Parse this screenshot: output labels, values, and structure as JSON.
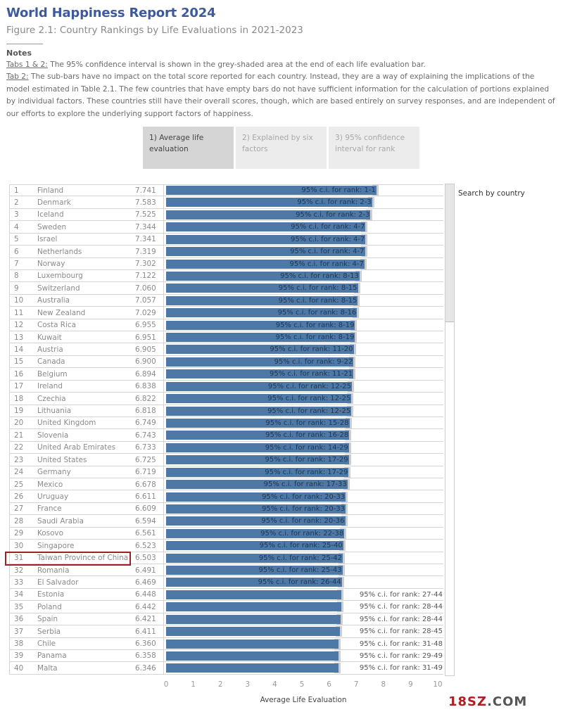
{
  "header": {
    "title": "World Happiness Report 2024",
    "subtitle": "Figure 2.1: Country Rankings by Life Evaluations in 2021-2023"
  },
  "notes": {
    "heading": "Notes",
    "line1_label": "Tabs 1 & 2:",
    "line1_text": " The 95% confidence interval is shown in the grey-shaded area at the end of each life evaluation bar.",
    "line2_label": "Tab 2:",
    "line2_text": " The sub-bars have no impact on the total score reported for each country. Instead, they are a way of explaining the implications of the model estimated in Table 2.1. The few countries that have empty bars do not have sufficient information for the calculation of portions explained by individual factors. These countries still have their overall scores, though, which are based entirely on survey responses, and are independent of our efforts to explore the underlying support factors of happiness."
  },
  "tabs": [
    {
      "label": "1) Average life evaluation",
      "active": true
    },
    {
      "label": "2) Explained by six factors",
      "active": false
    },
    {
      "label": "3) 95% confidence interval for rank",
      "active": false
    }
  ],
  "search": {
    "label": "Search by country"
  },
  "colors": {
    "bar": "#4e79a7",
    "ci": "#c9c9c9",
    "highlight": "#9b2226",
    "title": "#3e5a9e"
  },
  "highlighted_rank": 31,
  "chart_data": {
    "type": "bar",
    "orientation": "horizontal",
    "xlabel": "Average Life Evaluation",
    "xlim": [
      0,
      10
    ],
    "xticks": [
      "0",
      "1",
      "2",
      "3",
      "4",
      "5",
      "6",
      "7",
      "8",
      "9",
      "10"
    ],
    "rows": [
      {
        "rank": "1",
        "country": "Finland",
        "score": "7.741",
        "value": 7.741,
        "ci": "95% c.i. for rank: 1-1"
      },
      {
        "rank": "2",
        "country": "Denmark",
        "score": "7.583",
        "value": 7.583,
        "ci": "95% c.i. for rank: 2-3"
      },
      {
        "rank": "3",
        "country": "Iceland",
        "score": "7.525",
        "value": 7.525,
        "ci": "95% c.i. for rank: 2-3"
      },
      {
        "rank": "4",
        "country": "Sweden",
        "score": "7.344",
        "value": 7.344,
        "ci": "95% c.i. for rank: 4-7"
      },
      {
        "rank": "5",
        "country": "Israel",
        "score": "7.341",
        "value": 7.341,
        "ci": "95% c.i. for rank: 4-7"
      },
      {
        "rank": "6",
        "country": "Netherlands",
        "score": "7.319",
        "value": 7.319,
        "ci": "95% c.i. for rank: 4-7"
      },
      {
        "rank": "7",
        "country": "Norway",
        "score": "7.302",
        "value": 7.302,
        "ci": "95% c.i. for rank: 4-7"
      },
      {
        "rank": "8",
        "country": "Luxembourg",
        "score": "7.122",
        "value": 7.122,
        "ci": "95% c.i. for rank: 8-13"
      },
      {
        "rank": "9",
        "country": "Switzerland",
        "score": "7.060",
        "value": 7.06,
        "ci": "95% c.i. for rank: 8-15"
      },
      {
        "rank": "10",
        "country": "Australia",
        "score": "7.057",
        "value": 7.057,
        "ci": "95% c.i. for rank: 8-15"
      },
      {
        "rank": "11",
        "country": "New Zealand",
        "score": "7.029",
        "value": 7.029,
        "ci": "95% c.i. for rank: 8-16"
      },
      {
        "rank": "12",
        "country": "Costa Rica",
        "score": "6.955",
        "value": 6.955,
        "ci": "95% c.i. for rank: 8-19"
      },
      {
        "rank": "13",
        "country": "Kuwait",
        "score": "6.951",
        "value": 6.951,
        "ci": "95% c.i. for rank: 8-19"
      },
      {
        "rank": "14",
        "country": "Austria",
        "score": "6.905",
        "value": 6.905,
        "ci": "95% c.i. for rank: 11-20"
      },
      {
        "rank": "15",
        "country": "Canada",
        "score": "6.900",
        "value": 6.9,
        "ci": "95% c.i. for rank: 9-22"
      },
      {
        "rank": "16",
        "country": "Belgium",
        "score": "6.894",
        "value": 6.894,
        "ci": "95% c.i. for rank: 11-21"
      },
      {
        "rank": "17",
        "country": "Ireland",
        "score": "6.838",
        "value": 6.838,
        "ci": "95% c.i. for rank: 12-25"
      },
      {
        "rank": "18",
        "country": "Czechia",
        "score": "6.822",
        "value": 6.822,
        "ci": "95% c.i. for rank: 12-25"
      },
      {
        "rank": "19",
        "country": "Lithuania",
        "score": "6.818",
        "value": 6.818,
        "ci": "95% c.i. for rank: 12-25"
      },
      {
        "rank": "20",
        "country": "United Kingdom",
        "score": "6.749",
        "value": 6.749,
        "ci": "95% c.i. for rank: 15-28"
      },
      {
        "rank": "21",
        "country": "Slovenia",
        "score": "6.743",
        "value": 6.743,
        "ci": "95% c.i. for rank: 16-28"
      },
      {
        "rank": "22",
        "country": "United Arab Emirates",
        "score": "6.733",
        "value": 6.733,
        "ci": "95% c.i. for rank: 14-29"
      },
      {
        "rank": "23",
        "country": "United States",
        "score": "6.725",
        "value": 6.725,
        "ci": "95% c.i. for rank: 17-29"
      },
      {
        "rank": "24",
        "country": "Germany",
        "score": "6.719",
        "value": 6.719,
        "ci": "95% c.i. for rank: 17-29"
      },
      {
        "rank": "25",
        "country": "Mexico",
        "score": "6.678",
        "value": 6.678,
        "ci": "95% c.i. for rank: 17-33"
      },
      {
        "rank": "26",
        "country": "Uruguay",
        "score": "6.611",
        "value": 6.611,
        "ci": "95% c.i. for rank: 20-33"
      },
      {
        "rank": "27",
        "country": "France",
        "score": "6.609",
        "value": 6.609,
        "ci": "95% c.i. for rank: 20-33"
      },
      {
        "rank": "28",
        "country": "Saudi Arabia",
        "score": "6.594",
        "value": 6.594,
        "ci": "95% c.i. for rank: 20-36"
      },
      {
        "rank": "29",
        "country": "Kosovo",
        "score": "6.561",
        "value": 6.561,
        "ci": "95% c.i. for rank: 22-38"
      },
      {
        "rank": "30",
        "country": "Singapore",
        "score": "6.523",
        "value": 6.523,
        "ci": "95% c.i. for rank: 25-40"
      },
      {
        "rank": "31",
        "country": "Taiwan Province of China",
        "score": "6.503",
        "value": 6.503,
        "ci": "95% c.i. for rank: 25-42"
      },
      {
        "rank": "32",
        "country": "Romania",
        "score": "6.491",
        "value": 6.491,
        "ci": "95% c.i. for rank: 25-43"
      },
      {
        "rank": "33",
        "country": "El Salvador",
        "score": "6.469",
        "value": 6.469,
        "ci": "95% c.i. for rank: 26-44"
      },
      {
        "rank": "34",
        "country": "Estonia",
        "score": "6.448",
        "value": 6.448,
        "ci": "95% c.i. for rank: 27-44"
      },
      {
        "rank": "35",
        "country": "Poland",
        "score": "6.442",
        "value": 6.442,
        "ci": "95% c.i. for rank: 28-44"
      },
      {
        "rank": "36",
        "country": "Spain",
        "score": "6.421",
        "value": 6.421,
        "ci": "95% c.i. for rank: 28-44"
      },
      {
        "rank": "37",
        "country": "Serbia",
        "score": "6.411",
        "value": 6.411,
        "ci": "95% c.i. for rank: 28-45"
      },
      {
        "rank": "38",
        "country": "Chile",
        "score": "6.360",
        "value": 6.36,
        "ci": "95% c.i. for rank: 31-48"
      },
      {
        "rank": "39",
        "country": "Panama",
        "score": "6.358",
        "value": 6.358,
        "ci": "95% c.i. for rank: 29-49"
      },
      {
        "rank": "40",
        "country": "Malta",
        "score": "6.346",
        "value": 6.346,
        "ci": "95% c.i. for rank: 31-49"
      }
    ]
  },
  "watermark": {
    "part1": "18SZ",
    "part2": ".COM"
  }
}
